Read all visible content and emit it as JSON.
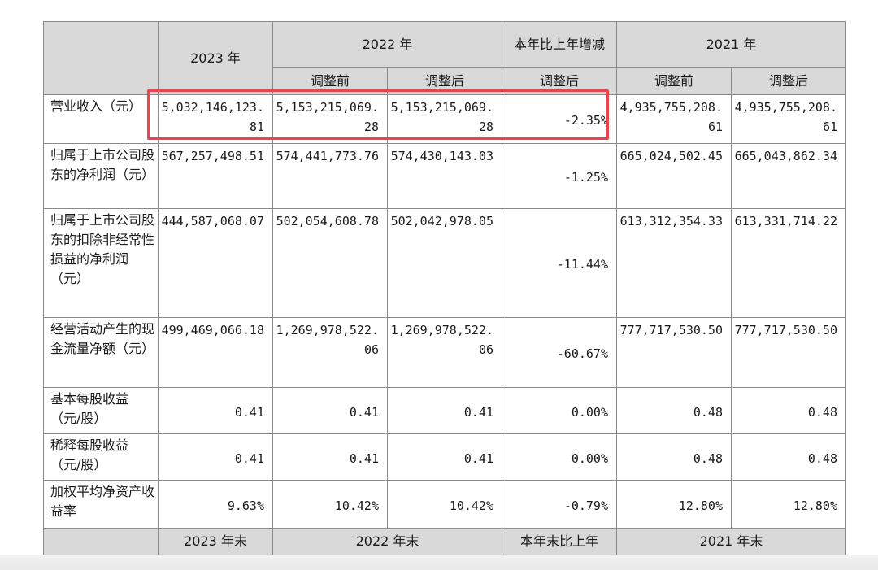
{
  "headers": {
    "y2023": "2023 年",
    "y2022": "2022 年",
    "change": "本年比上年增减",
    "y2021": "2021 年",
    "before": "调整前",
    "after": "调整后",
    "change_after": "调整后",
    "before_2021": "调整前",
    "after_2021": "调整后"
  },
  "rows": [
    {
      "label": "营业收入（元）",
      "v2023": "5,032,146,123.81",
      "v2022_before": "5,153,215,069.28",
      "v2022_after": "5,153,215,069.28",
      "change": "-2.35%",
      "v2021_before": "4,935,755,208.61",
      "v2021_after": "4,935,755,208.61"
    },
    {
      "label": "归属于上市公司股东的净利润（元）",
      "v2023": "567,257,498.51",
      "v2022_before": "574,441,773.76",
      "v2022_after": "574,430,143.03",
      "change": "-1.25%",
      "v2021_before": "665,024,502.45",
      "v2021_after": "665,043,862.34"
    },
    {
      "label": "归属于上市公司股东的扣除非经常性损益的净利润（元）",
      "v2023": "444,587,068.07",
      "v2022_before": "502,054,608.78",
      "v2022_after": "502,042,978.05",
      "change": "-11.44%",
      "v2021_before": "613,312,354.33",
      "v2021_after": "613,331,714.22"
    },
    {
      "label": "经营活动产生的现金流量净额（元）",
      "v2023": "499,469,066.18",
      "v2022_before": "1,269,978,522.06",
      "v2022_after": "1,269,978,522.06",
      "change": "-60.67%",
      "v2021_before": "777,717,530.50",
      "v2021_after": "777,717,530.50"
    },
    {
      "label": "基本每股收益（元/股）",
      "v2023": "0.41",
      "v2022_before": "0.41",
      "v2022_after": "0.41",
      "change": "0.00%",
      "v2021_before": "0.48",
      "v2021_after": "0.48"
    },
    {
      "label": "稀释每股收益（元/股）",
      "v2023": "0.41",
      "v2022_before": "0.41",
      "v2022_after": "0.41",
      "change": "0.00%",
      "v2021_before": "0.48",
      "v2021_after": "0.48"
    },
    {
      "label": "加权平均净资产收益率",
      "v2023": "9.63%",
      "v2022_before": "10.42%",
      "v2022_after": "10.42%",
      "change": "-0.79%",
      "v2021_before": "12.80%",
      "v2021_after": "12.80%"
    }
  ],
  "footer": {
    "y2023_end": "2023 年末",
    "y2022_end": "2022 年末",
    "change_end": "本年末比上年",
    "y2021_end": "2021 年末"
  },
  "colors": {
    "header_bg": "#d9d9d9",
    "border": "#8a8a8a",
    "highlight": "#e8454f"
  }
}
